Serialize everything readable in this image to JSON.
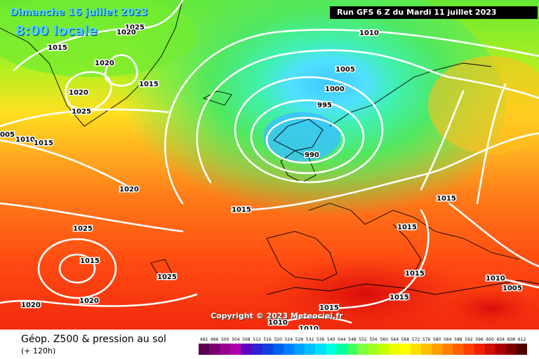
{
  "header": {
    "date": "Dimanche 16 juillet 2023",
    "time": "8:00 locale",
    "run": "Run GFS 6 Z du Mardi 11 juillet 2023"
  },
  "copyright": "Copyright © 2023 Meteociel.fr",
  "legend": {
    "title": "Géop. Z500 & pression au sol",
    "subtitle": "(+ 120h)",
    "scale_values": [
      "492",
      "496",
      "500",
      "504",
      "508",
      "512",
      "516",
      "520",
      "524",
      "528",
      "532",
      "536",
      "540",
      "544",
      "548",
      "552",
      "556",
      "560",
      "564",
      "568",
      "572",
      "576",
      "580",
      "584",
      "588",
      "592",
      "596",
      "600",
      "604",
      "608",
      "612"
    ],
    "scale_colors": [
      "#5a0050",
      "#7a0070",
      "#9a0090",
      "#b000b0",
      "#6000c0",
      "#3020d0",
      "#1040e0",
      "#0060f0",
      "#0080ff",
      "#00a0ff",
      "#00c0ff",
      "#00e0ff",
      "#00ffe0",
      "#00ffa0",
      "#40ff60",
      "#80ff40",
      "#a0ff20",
      "#c8ff00",
      "#f0ff00",
      "#ffff00",
      "#ffe000",
      "#ffc000",
      "#ffa000",
      "#ff8000",
      "#ff6000",
      "#ff4000",
      "#f02000",
      "#d01000",
      "#b00000",
      "#800000",
      "#500000"
    ]
  },
  "isobar_labels": [
    {
      "text": "1025"
    },
    {
      "text": "1020"
    },
    {
      "text": "1015"
    },
    {
      "text": "1020"
    },
    {
      "text": "1015"
    },
    {
      "text": "1020"
    },
    {
      "text": "1025"
    },
    {
      "text": "005"
    },
    {
      "text": "1010"
    },
    {
      "text": "1015"
    },
    {
      "text": "1010"
    },
    {
      "text": "1005"
    },
    {
      "text": "1000"
    },
    {
      "text": "995"
    },
    {
      "text": "990"
    },
    {
      "text": "1020"
    },
    {
      "text": "1015"
    },
    {
      "text": "1025"
    },
    {
      "text": "1015"
    },
    {
      "text": "1025"
    },
    {
      "text": "1020"
    },
    {
      "text": "1020"
    },
    {
      "text": "1015"
    },
    {
      "text": "1015"
    },
    {
      "text": "1015"
    },
    {
      "text": "1015"
    },
    {
      "text": "1010"
    },
    {
      "text": "1005"
    },
    {
      "text": "1015"
    },
    {
      "text": "1010"
    },
    {
      "text": "1010"
    }
  ]
}
